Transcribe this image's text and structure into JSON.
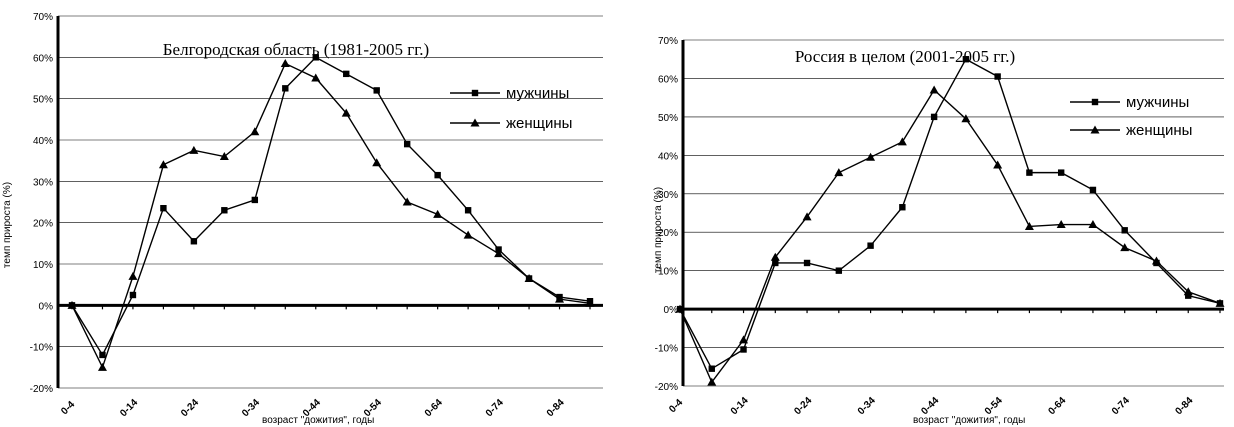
{
  "chart_data": [
    {
      "type": "line",
      "title": "Белгородская область (1981-2005 гг.)",
      "xlabel": "возраст \"дожития\", годы",
      "ylabel": "темп прироста (%)",
      "ylim": [
        -20,
        70
      ],
      "yticks": [
        "-20%",
        "-10%",
        "0%",
        "10%",
        "20%",
        "30%",
        "40%",
        "50%",
        "60%",
        "70%"
      ],
      "x_tick_labels": [
        "0-4",
        "0-14",
        "0-24",
        "0-34",
        "0-44",
        "0-54",
        "0-64",
        "0-74",
        "0-84"
      ],
      "grid": true,
      "legend_position": "right",
      "series": [
        {
          "name": "мужчины",
          "marker": "square",
          "values": [
            0,
            -12,
            2.5,
            23.5,
            15.5,
            23,
            25.5,
            52.5,
            60,
            56,
            52,
            39,
            31.5,
            23,
            13.5,
            6.5,
            2,
            1
          ]
        },
        {
          "name": "женщины",
          "marker": "triangle",
          "values": [
            0,
            -15,
            7,
            34,
            37.5,
            36,
            42,
            58.5,
            55,
            46.5,
            34.5,
            25,
            22,
            17,
            12.5,
            6.5,
            1.5,
            0.5
          ]
        }
      ]
    },
    {
      "type": "line",
      "title": "Россия в целом (2001-2005 гг.)",
      "xlabel": "возраст \"дожития\", годы",
      "ylabel": "темп прироста (%)",
      "ylim": [
        -20,
        70
      ],
      "yticks": [
        "-20%",
        "-10%",
        "0%",
        "10%",
        "20%",
        "30%",
        "40%",
        "50%",
        "60%",
        "70%"
      ],
      "x_tick_labels": [
        "0-4",
        "0-14",
        "0-24",
        "0-34",
        "0-44",
        "0-54",
        "0-64",
        "0-74",
        "0-84"
      ],
      "grid": true,
      "legend_position": "right",
      "series": [
        {
          "name": "мужчины",
          "marker": "square",
          "values": [
            0,
            -15.5,
            -10.5,
            12,
            12,
            10,
            16.5,
            26.5,
            50,
            65,
            60.5,
            35.5,
            35.5,
            31,
            20.5,
            12,
            3.5,
            1.5
          ]
        },
        {
          "name": "женщины",
          "marker": "triangle",
          "values": [
            0,
            -19,
            -8,
            13.5,
            24,
            35.5,
            39.5,
            43.5,
            57,
            49.5,
            37.5,
            21.5,
            22,
            22,
            16,
            12.5,
            4.5,
            1.5
          ]
        }
      ]
    }
  ]
}
